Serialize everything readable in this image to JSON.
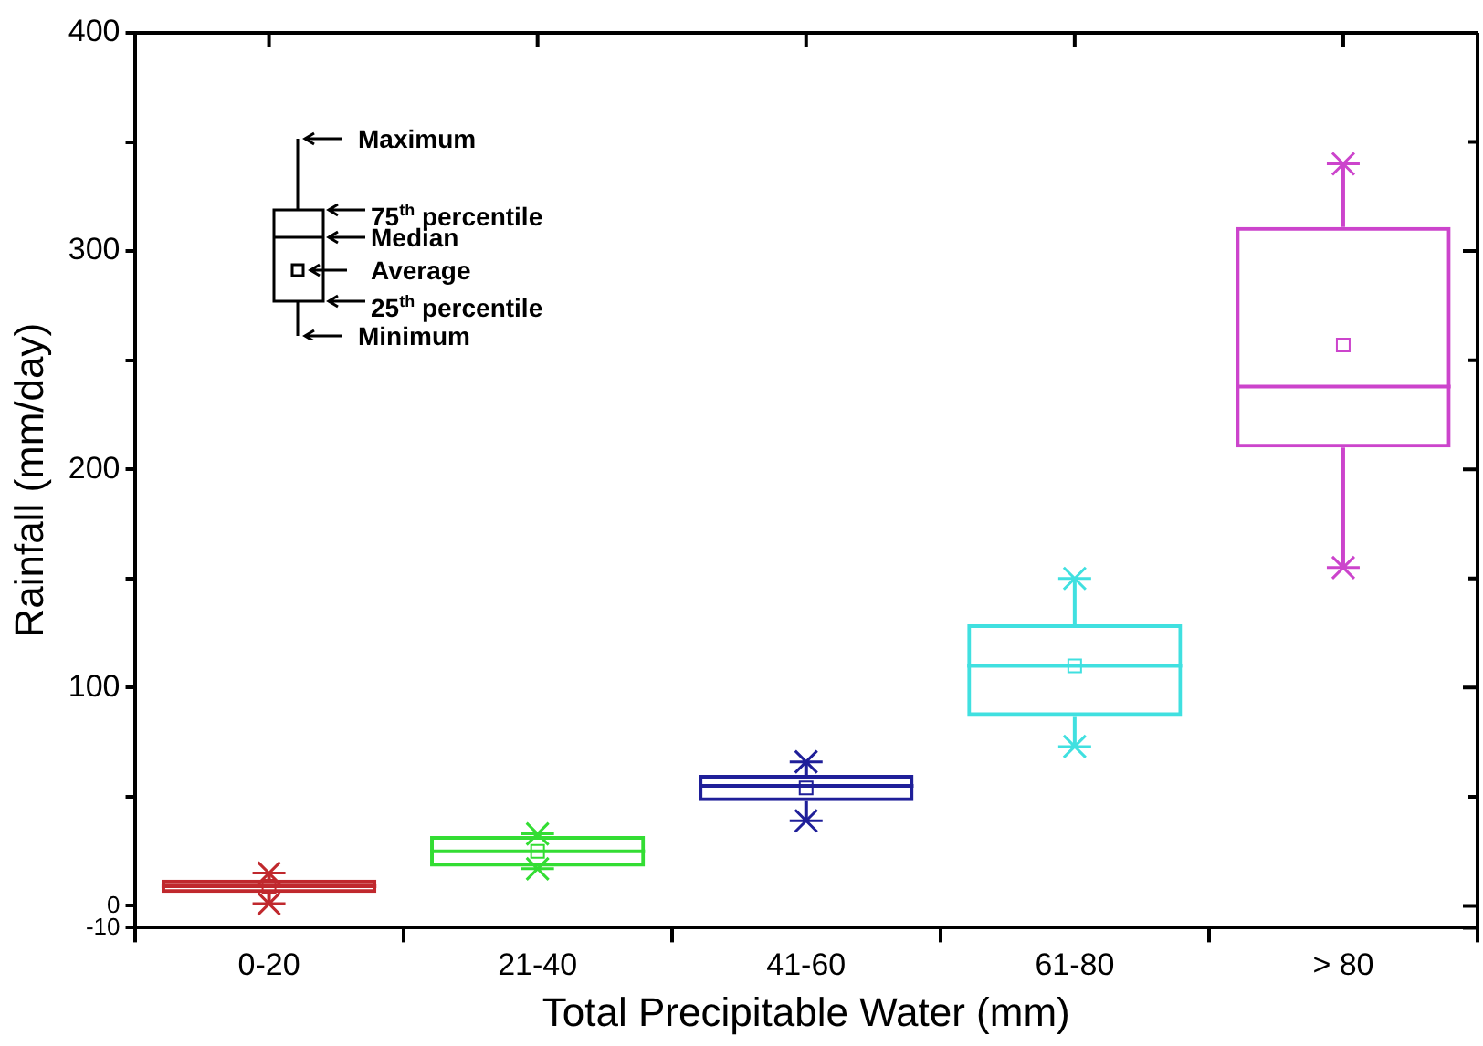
{
  "chart_data": {
    "type": "box",
    "xlabel": "Total Precipitable Water (mm)",
    "ylabel": "Rainfall (mm/day)",
    "categories": [
      "0-20",
      "21-40",
      "41-60",
      "61-80",
      "> 80"
    ],
    "colors": [
      "#c0282d",
      "#33dd33",
      "#1f1f99",
      "#40e0e0",
      "#cc44cc"
    ],
    "boxes": [
      {
        "low": 1,
        "q1": 6,
        "median": 9,
        "q3": 12,
        "high": 15,
        "mean": 9
      },
      {
        "low": 17,
        "q1": 18,
        "median": 25,
        "q3": 32,
        "high": 33,
        "mean": 25
      },
      {
        "low": 39,
        "q1": 48,
        "median": 55,
        "q3": 60,
        "high": 66,
        "mean": 54
      },
      {
        "low": 73,
        "q1": 87,
        "median": 110,
        "q3": 129,
        "high": 150,
        "mean": 110
      },
      {
        "low": 155,
        "q1": 210,
        "median": 238,
        "q3": 311,
        "high": 340,
        "mean": 257
      }
    ],
    "ylim": [
      -10,
      400
    ],
    "yticks": [
      -10,
      0,
      {
        "value": 50,
        "label": null
      },
      100,
      {
        "value": 150,
        "label": null
      },
      200,
      {
        "value": 250,
        "label": null
      },
      300,
      {
        "value": 350,
        "label": null
      },
      400
    ],
    "grid": false,
    "legend": false,
    "annotations": [
      "Maximum",
      "75$^{th}$ percentile",
      "Median",
      "Average",
      "25$^{th}$ percentile",
      "Minimum"
    ]
  }
}
